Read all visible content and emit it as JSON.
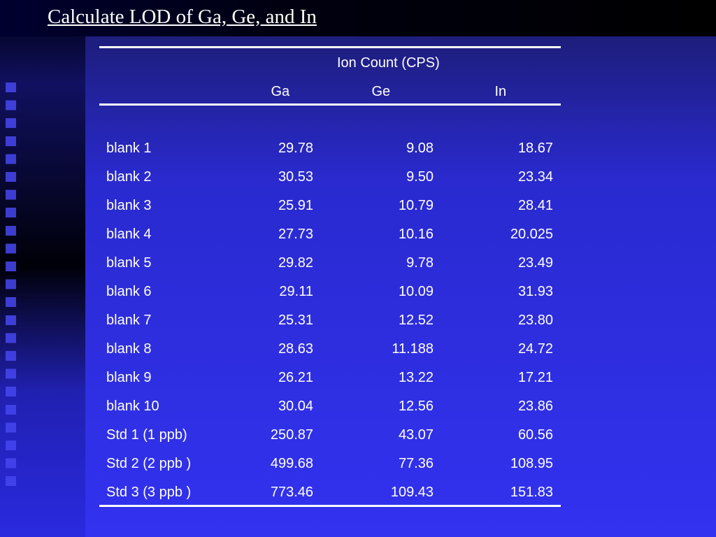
{
  "title": "Calculate LOD of Ga, Ge, and In",
  "table": {
    "group_header": "Ion Count (CPS)",
    "columns": [
      "Ga",
      "Ge",
      "In"
    ],
    "rows": [
      [
        "blank 1",
        "29.78",
        "9.08",
        "18.67"
      ],
      [
        "blank 2",
        "30.53",
        "9.50",
        "23.34"
      ],
      [
        "blank 3",
        "25.91",
        "10.79",
        "28.41"
      ],
      [
        "blank 4",
        "27.73",
        "10.16",
        "20.025"
      ],
      [
        "blank 5",
        "29.82",
        "9.78",
        "23.49"
      ],
      [
        "blank 6",
        "29.11",
        "10.09",
        "31.93"
      ],
      [
        "blank 7",
        "25.31",
        "12.52",
        "23.80"
      ],
      [
        "blank 8",
        "28.63",
        "11.188",
        "24.72"
      ],
      [
        "blank 9",
        "26.21",
        "13.22",
        "17.21"
      ],
      [
        "blank 10",
        "30.04",
        "12.56",
        "23.86"
      ],
      [
        "Std 1 (1 ppb)",
        "250.87",
        "43.07",
        "60.56"
      ],
      [
        "Std 2 (2 ppb )",
        "499.68",
        "77.36",
        "108.95"
      ],
      [
        "Std 3 (3 ppb )",
        "773.46",
        "109.43",
        "151.83"
      ]
    ]
  }
}
